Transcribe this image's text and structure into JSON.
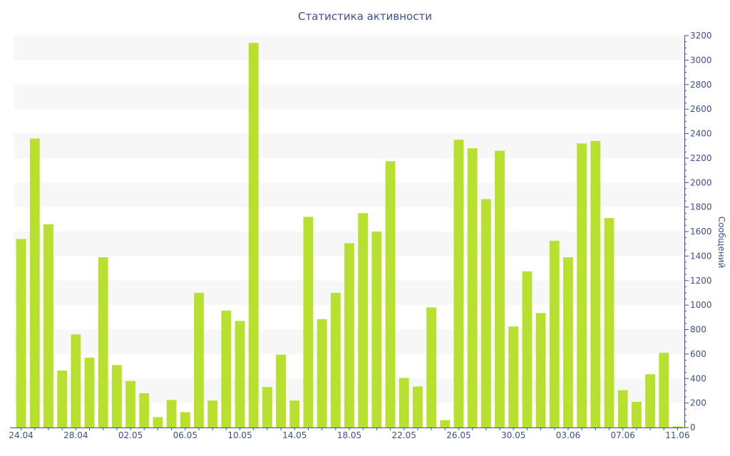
{
  "chart_data": {
    "type": "bar",
    "title": "Статистика активности",
    "xlabel": "",
    "ylabel": "Сообщений",
    "y_axis_side": "right",
    "ylim": [
      0,
      3200
    ],
    "yticks": [
      0,
      200,
      400,
      600,
      800,
      1000,
      1200,
      1400,
      1600,
      1800,
      2000,
      2200,
      2400,
      2600,
      2800,
      3000,
      3200
    ],
    "grid": "horizontal-bands",
    "legend": "none",
    "bar_color": "#b7e02f",
    "band_color": "#f7f7f7",
    "axis_color": "#3d4f8c",
    "categories": [
      "24.04",
      "25.04",
      "26.04",
      "27.04",
      "28.04",
      "29.04",
      "30.04",
      "01.05",
      "02.05",
      "03.05",
      "04.05",
      "05.05",
      "06.05",
      "07.05",
      "08.05",
      "09.05",
      "10.05",
      "11.05",
      "12.05",
      "13.05",
      "14.05",
      "15.05",
      "16.05",
      "17.05",
      "18.05",
      "19.05",
      "20.05",
      "21.05",
      "22.05",
      "23.05",
      "24.05",
      "25.05",
      "26.05",
      "27.05",
      "28.05",
      "29.05",
      "30.05",
      "31.05",
      "01.06",
      "02.06",
      "03.06",
      "04.06",
      "05.06",
      "06.06",
      "07.06",
      "08.06",
      "09.06",
      "10.06",
      "11.06"
    ],
    "values": [
      1540,
      2360,
      1660,
      465,
      760,
      570,
      1390,
      510,
      380,
      280,
      85,
      225,
      125,
      1100,
      220,
      955,
      870,
      3140,
      330,
      595,
      220,
      1720,
      885,
      1100,
      1505,
      1750,
      1600,
      2175,
      405,
      335,
      980,
      60,
      2350,
      2280,
      1865,
      2260,
      825,
      1275,
      935,
      1525,
      1390,
      2320,
      2340,
      1710,
      305,
      210,
      435,
      610,
      10
    ],
    "xtick_labels": [
      "24.04",
      "28.04",
      "02.05",
      "06.05",
      "10.05",
      "14.05",
      "18.05",
      "22.05",
      "26.05",
      "30.05",
      "03.06",
      "07.06",
      "11.06"
    ]
  }
}
